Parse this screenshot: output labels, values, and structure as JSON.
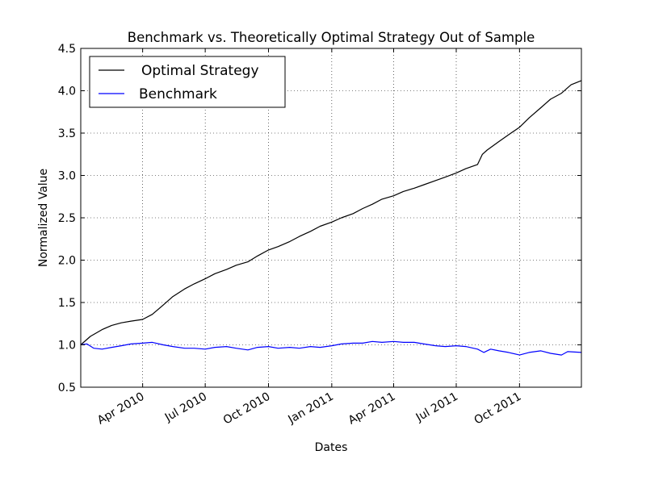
{
  "chart_data": {
    "type": "line",
    "title": "Benchmark vs. Theoretically Optimal Strategy Out of Sample",
    "xlabel": "Dates",
    "ylabel": "Normalized Value",
    "x_range": [
      "2010-01-01",
      "2011-12-30"
    ],
    "ylim": [
      0.5,
      4.5
    ],
    "y_ticks": [
      0.5,
      1.0,
      1.5,
      2.0,
      2.5,
      3.0,
      3.5,
      4.0,
      4.5
    ],
    "x_ticks": [
      {
        "date": "2010-04-01",
        "label": "Apr 2010"
      },
      {
        "date": "2010-07-01",
        "label": "Jul 2010"
      },
      {
        "date": "2010-10-01",
        "label": "Oct 2010"
      },
      {
        "date": "2011-01-01",
        "label": "Jan 2011"
      },
      {
        "date": "2011-04-01",
        "label": "Apr 2011"
      },
      {
        "date": "2011-07-01",
        "label": "Jul 2011"
      },
      {
        "date": "2011-10-01",
        "label": "Oct 2011"
      }
    ],
    "grid": true,
    "legend_position": "top-left",
    "series": [
      {
        "name": "Optimal Strategy",
        "color": "#000000",
        "points": [
          [
            "2010-01-01",
            1.0
          ],
          [
            "2010-01-15",
            1.1
          ],
          [
            "2010-02-01",
            1.18
          ],
          [
            "2010-02-15",
            1.23
          ],
          [
            "2010-03-01",
            1.26
          ],
          [
            "2010-03-15",
            1.28
          ],
          [
            "2010-04-01",
            1.3
          ],
          [
            "2010-04-15",
            1.36
          ],
          [
            "2010-05-01",
            1.47
          ],
          [
            "2010-05-15",
            1.57
          ],
          [
            "2010-06-01",
            1.66
          ],
          [
            "2010-06-15",
            1.72
          ],
          [
            "2010-07-01",
            1.78
          ],
          [
            "2010-07-15",
            1.84
          ],
          [
            "2010-08-01",
            1.89
          ],
          [
            "2010-08-15",
            1.94
          ],
          [
            "2010-09-01",
            1.98
          ],
          [
            "2010-09-15",
            2.05
          ],
          [
            "2010-10-01",
            2.12
          ],
          [
            "2010-10-15",
            2.16
          ],
          [
            "2010-11-01",
            2.22
          ],
          [
            "2010-11-15",
            2.28
          ],
          [
            "2010-12-01",
            2.34
          ],
          [
            "2010-12-15",
            2.4
          ],
          [
            "2011-01-01",
            2.45
          ],
          [
            "2011-01-15",
            2.5
          ],
          [
            "2011-02-01",
            2.55
          ],
          [
            "2011-02-15",
            2.61
          ],
          [
            "2011-03-01",
            2.66
          ],
          [
            "2011-03-15",
            2.72
          ],
          [
            "2011-04-01",
            2.76
          ],
          [
            "2011-04-15",
            2.81
          ],
          [
            "2011-05-01",
            2.85
          ],
          [
            "2011-05-15",
            2.89
          ],
          [
            "2011-06-01",
            2.94
          ],
          [
            "2011-06-15",
            2.98
          ],
          [
            "2011-07-01",
            3.03
          ],
          [
            "2011-07-15",
            3.08
          ],
          [
            "2011-08-01",
            3.13
          ],
          [
            "2011-08-08",
            3.25
          ],
          [
            "2011-08-15",
            3.3
          ],
          [
            "2011-09-01",
            3.4
          ],
          [
            "2011-09-15",
            3.48
          ],
          [
            "2011-10-01",
            3.57
          ],
          [
            "2011-10-15",
            3.68
          ],
          [
            "2011-11-01",
            3.8
          ],
          [
            "2011-11-15",
            3.9
          ],
          [
            "2011-12-01",
            3.97
          ],
          [
            "2011-12-15",
            4.07
          ],
          [
            "2011-12-30",
            4.12
          ]
        ]
      },
      {
        "name": "Benchmark",
        "color": "#0000ff",
        "points": [
          [
            "2010-01-01",
            1.0
          ],
          [
            "2010-01-10",
            1.01
          ],
          [
            "2010-01-20",
            0.96
          ],
          [
            "2010-02-01",
            0.95
          ],
          [
            "2010-02-15",
            0.97
          ],
          [
            "2010-03-01",
            0.99
          ],
          [
            "2010-03-15",
            1.01
          ],
          [
            "2010-04-01",
            1.02
          ],
          [
            "2010-04-15",
            1.03
          ],
          [
            "2010-05-01",
            1.0
          ],
          [
            "2010-05-15",
            0.98
          ],
          [
            "2010-06-01",
            0.96
          ],
          [
            "2010-06-15",
            0.96
          ],
          [
            "2010-07-01",
            0.95
          ],
          [
            "2010-07-15",
            0.97
          ],
          [
            "2010-08-01",
            0.98
          ],
          [
            "2010-08-15",
            0.96
          ],
          [
            "2010-09-01",
            0.94
          ],
          [
            "2010-09-15",
            0.97
          ],
          [
            "2010-10-01",
            0.98
          ],
          [
            "2010-10-15",
            0.96
          ],
          [
            "2010-11-01",
            0.97
          ],
          [
            "2010-11-15",
            0.96
          ],
          [
            "2010-12-01",
            0.98
          ],
          [
            "2010-12-15",
            0.97
          ],
          [
            "2011-01-01",
            0.99
          ],
          [
            "2011-01-15",
            1.01
          ],
          [
            "2011-02-01",
            1.02
          ],
          [
            "2011-02-15",
            1.02
          ],
          [
            "2011-03-01",
            1.04
          ],
          [
            "2011-03-15",
            1.03
          ],
          [
            "2011-04-01",
            1.04
          ],
          [
            "2011-04-15",
            1.03
          ],
          [
            "2011-05-01",
            1.03
          ],
          [
            "2011-05-15",
            1.01
          ],
          [
            "2011-06-01",
            0.99
          ],
          [
            "2011-06-15",
            0.98
          ],
          [
            "2011-07-01",
            0.99
          ],
          [
            "2011-07-15",
            0.98
          ],
          [
            "2011-08-01",
            0.95
          ],
          [
            "2011-08-10",
            0.91
          ],
          [
            "2011-08-20",
            0.95
          ],
          [
            "2011-09-01",
            0.93
          ],
          [
            "2011-09-15",
            0.91
          ],
          [
            "2011-10-01",
            0.88
          ],
          [
            "2011-10-15",
            0.91
          ],
          [
            "2011-11-01",
            0.93
          ],
          [
            "2011-11-15",
            0.9
          ],
          [
            "2011-12-01",
            0.88
          ],
          [
            "2011-12-10",
            0.92
          ],
          [
            "2011-12-30",
            0.91
          ]
        ]
      }
    ]
  }
}
